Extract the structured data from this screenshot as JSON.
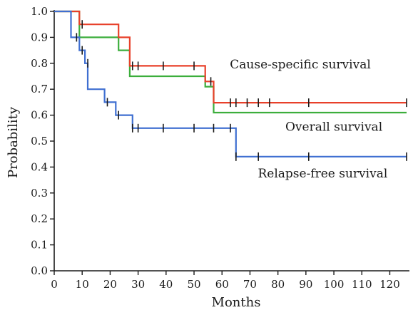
{
  "chart_data": {
    "type": "line",
    "xlabel": "Months",
    "ylabel": "Probability",
    "xlim": [
      0,
      126
    ],
    "ylim": [
      0,
      1.0
    ],
    "xticks": [
      0,
      10,
      20,
      30,
      40,
      50,
      60,
      70,
      80,
      90,
      100,
      110,
      120
    ],
    "yticks": [
      0.0,
      0.1,
      0.2,
      0.3,
      0.4,
      0.5,
      0.6,
      0.7,
      0.8,
      0.9,
      1.0
    ],
    "ytick_labels": [
      "0.0",
      "0.1",
      "0.2",
      "0.3",
      "0.4",
      "0.5",
      "0.6",
      "0.7",
      "0.8",
      "0.9",
      "1.0"
    ],
    "grid": false,
    "series": [
      {
        "label": "Cause-specific survival",
        "color": "#e8402a",
        "steps": [
          [
            0,
            1.0
          ],
          [
            9,
            1.0
          ],
          [
            9,
            0.95
          ],
          [
            23,
            0.95
          ],
          [
            23,
            0.9
          ],
          [
            27,
            0.9
          ],
          [
            27,
            0.79
          ],
          [
            54,
            0.79
          ],
          [
            54,
            0.73
          ],
          [
            57,
            0.73
          ],
          [
            57,
            0.648
          ],
          [
            126,
            0.648
          ]
        ],
        "censored": [
          [
            10,
            0.95
          ],
          [
            28,
            0.79
          ],
          [
            30,
            0.79
          ],
          [
            39,
            0.79
          ],
          [
            50,
            0.79
          ],
          [
            56,
            0.73
          ],
          [
            63,
            0.648
          ],
          [
            65,
            0.648
          ],
          [
            69,
            0.648
          ],
          [
            73,
            0.648
          ],
          [
            77,
            0.648
          ],
          [
            91,
            0.648
          ],
          [
            126,
            0.648
          ]
        ]
      },
      {
        "label": "Overall survival",
        "color": "#3cae3c",
        "steps": [
          [
            0,
            1.0
          ],
          [
            9,
            1.0
          ],
          [
            9,
            0.9
          ],
          [
            23,
            0.9
          ],
          [
            23,
            0.85
          ],
          [
            27,
            0.85
          ],
          [
            27,
            0.75
          ],
          [
            54,
            0.75
          ],
          [
            54,
            0.71
          ],
          [
            57,
            0.71
          ],
          [
            57,
            0.61
          ],
          [
            126,
            0.61
          ]
        ],
        "censored": []
      },
      {
        "label": "Relapse-free survival",
        "color": "#3f6fd1",
        "steps": [
          [
            0,
            1.0
          ],
          [
            6,
            1.0
          ],
          [
            6,
            0.9
          ],
          [
            9,
            0.9
          ],
          [
            9,
            0.85
          ],
          [
            11,
            0.85
          ],
          [
            11,
            0.8
          ],
          [
            12,
            0.8
          ],
          [
            12,
            0.7
          ],
          [
            18,
            0.7
          ],
          [
            18,
            0.65
          ],
          [
            22,
            0.65
          ],
          [
            22,
            0.6
          ],
          [
            28,
            0.6
          ],
          [
            28,
            0.55
          ],
          [
            65,
            0.55
          ],
          [
            65,
            0.44
          ],
          [
            126,
            0.44
          ]
        ],
        "censored": [
          [
            8,
            0.9
          ],
          [
            10,
            0.85
          ],
          [
            12,
            0.8
          ],
          [
            19,
            0.65
          ],
          [
            23,
            0.6
          ],
          [
            28,
            0.55
          ],
          [
            30,
            0.55
          ],
          [
            39,
            0.55
          ],
          [
            50,
            0.55
          ],
          [
            57,
            0.55
          ],
          [
            63,
            0.55
          ],
          [
            65,
            0.44
          ],
          [
            73,
            0.44
          ],
          [
            91,
            0.44
          ],
          [
            126,
            0.44
          ]
        ]
      }
    ],
    "annotations": [
      {
        "text": "Cause-specific survival",
        "x": 88,
        "y": 0.78
      },
      {
        "text": "Overall survival",
        "x": 100,
        "y": 0.54
      },
      {
        "text": "Relapse-free survival",
        "x": 96,
        "y": 0.36
      }
    ]
  }
}
